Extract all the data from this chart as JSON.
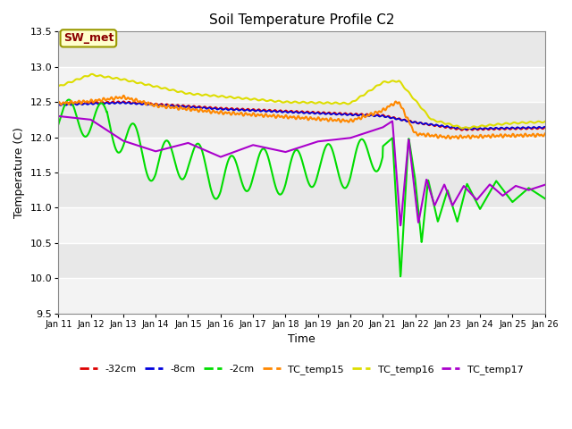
{
  "title": "Soil Temperature Profile C2",
  "xlabel": "Time",
  "ylabel": "Temperature (C)",
  "ylim": [
    9.5,
    13.5
  ],
  "xlim": [
    0,
    15
  ],
  "x_tick_labels": [
    "Jan 11",
    "Jan 12",
    "Jan 13",
    "Jan 14",
    "Jan 15",
    "Jan 16",
    "Jan 17",
    "Jan 18",
    "Jan 19",
    "Jan 20",
    "Jan 21",
    "Jan 22",
    "Jan 23",
    "Jan 24",
    "Jan 25",
    "Jan 26"
  ],
  "bg_color": "#e8e8e8",
  "fig_color": "#ffffff",
  "annotation_text": "SW_met",
  "annotation_color": "#8b0000",
  "annotation_bg": "#ffffcc",
  "series": {
    "m32cm": {
      "color": "#dd0000",
      "linewidth": 1.2,
      "label": "-32cm"
    },
    "m8cm": {
      "color": "#0000dd",
      "linewidth": 1.2,
      "label": "-8cm"
    },
    "m2cm": {
      "color": "#00dd00",
      "linewidth": 1.5,
      "label": "-2cm"
    },
    "tc15": {
      "color": "#ff8800",
      "linewidth": 1.5,
      "label": "TC_temp15"
    },
    "tc16": {
      "color": "#dddd00",
      "linewidth": 1.5,
      "label": "TC_temp16"
    },
    "tc17": {
      "color": "#aa00cc",
      "linewidth": 1.5,
      "label": "TC_temp17"
    }
  }
}
